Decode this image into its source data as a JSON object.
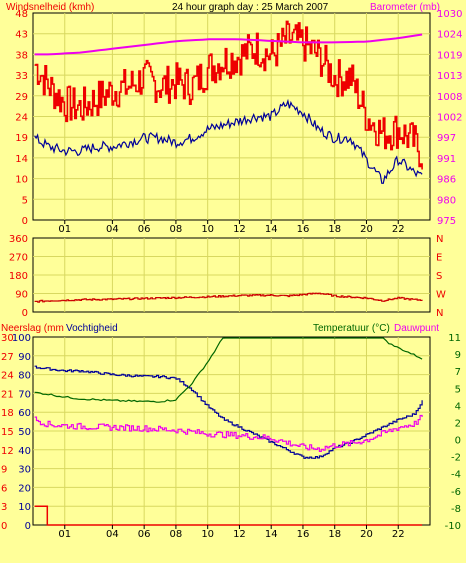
{
  "colors": {
    "background": "#ffff99",
    "wind": "#ee0000",
    "wind_gust": "#ee0000",
    "wind_avg": "#000099",
    "barometer": "#ee00ee",
    "wind_direction": "#cc0000",
    "rain": "#ee0000",
    "humidity": "#000099",
    "temperature": "#006600",
    "dewpoint": "#ee00ee",
    "title_text": "#000000",
    "grid": "#d8d860"
  },
  "chart_data": [
    {
      "type": "line",
      "title": "24 hour graph day : 25 March 2007",
      "ylabel_left": "Windsnelheid (kmh)",
      "ylabel_right": "Barometer (mb)",
      "x_ticks": [
        "01",
        "04",
        "06",
        "08",
        "10",
        "12",
        "14",
        "16",
        "18",
        "20",
        "22"
      ],
      "y_ticks_left": [
        "0",
        "5",
        "10",
        "14",
        "19",
        "24",
        "29",
        "33",
        "38",
        "43",
        "48"
      ],
      "y_ticks_right": [
        "975",
        "980",
        "986",
        "991",
        "997",
        "1002",
        "1008",
        "1013",
        "1019",
        "1024",
        "1030"
      ],
      "ylim_left": [
        0,
        48
      ],
      "ylim_right": [
        975,
        1030
      ],
      "xlim": [
        0,
        24
      ],
      "series": [
        {
          "name": "Windsnelheid (kmh)",
          "axis": "left",
          "x": [
            -0.9,
            0,
            1,
            2,
            3,
            4,
            5,
            6,
            7,
            8,
            9,
            10,
            11,
            12,
            13,
            14,
            15,
            16,
            17,
            18,
            19,
            20,
            21,
            22,
            23,
            23.5
          ],
          "values": [
            36,
            31,
            27,
            26,
            28,
            30,
            31,
            33,
            31,
            32,
            31,
            35,
            37,
            38,
            40,
            38,
            42,
            41,
            38,
            33,
            33,
            24,
            20,
            21,
            18,
            15
          ]
        },
        {
          "name": "Gemiddelde windsnelheid",
          "axis": "left",
          "x": [
            -0.9,
            0,
            1,
            2,
            3,
            4,
            5,
            6,
            7,
            8,
            9,
            10,
            11,
            12,
            13,
            14,
            15,
            16,
            17,
            18,
            19,
            20,
            21,
            22,
            23,
            23.5
          ],
          "values": [
            19,
            17,
            16,
            16,
            17,
            17,
            18,
            19,
            19,
            18,
            19,
            21,
            22,
            23,
            24,
            24,
            27,
            25,
            21,
            19,
            19,
            14,
            9,
            14,
            11,
            10
          ]
        },
        {
          "name": "Barometer (mb)",
          "axis": "right",
          "x": [
            -0.9,
            0,
            2,
            4,
            6,
            8,
            10,
            12,
            14,
            16,
            18,
            20,
            22,
            23.5
          ],
          "values": [
            1019.0,
            1019.0,
            1019.5,
            1020.5,
            1021.5,
            1022.5,
            1023.0,
            1023.0,
            1022.6,
            1022.2,
            1022.2,
            1022.4,
            1023.3,
            1024.3
          ]
        }
      ]
    },
    {
      "type": "line",
      "ylabel_right": "N W S E N",
      "x_ticks": [],
      "y_ticks_left": [
        "0",
        "90",
        "180",
        "270",
        "360"
      ],
      "y_ticks_right": [
        "N",
        "W",
        "S",
        "E",
        "N"
      ],
      "ylim": [
        0,
        360
      ],
      "xlim": [
        0,
        24
      ],
      "series": [
        {
          "name": "Windrichting",
          "x": [
            -0.9,
            0,
            2,
            4,
            6,
            8,
            10,
            12,
            14,
            15,
            16,
            17,
            18,
            20,
            21,
            22,
            23,
            23.5
          ],
          "values": [
            50,
            55,
            60,
            62,
            66,
            70,
            74,
            80,
            82,
            78,
            85,
            92,
            78,
            68,
            55,
            68,
            60,
            58
          ]
        }
      ]
    },
    {
      "type": "line",
      "ylabel_left": "Neerslag (mm",
      "ylabel_left_2": "Vochtigheid",
      "ylabel_right": "Temperatuur (°C)",
      "ylabel_right_2": "Dauwpunt",
      "x_ticks": [
        "01",
        "04",
        "06",
        "08",
        "10",
        "12",
        "14",
        "16",
        "18",
        "20",
        "22"
      ],
      "y_ticks_rain": [
        "0",
        "3",
        "6",
        "9",
        "12",
        "15",
        "18",
        "21",
        "24",
        "27",
        "30"
      ],
      "y_ticks_humidity": [
        "0",
        "10",
        "20",
        "30",
        "40",
        "50",
        "60",
        "70",
        "80",
        "90",
        "100"
      ],
      "y_ticks_right": [
        "-10",
        "-8",
        "-6",
        "-4",
        "-2",
        "0",
        "2",
        "4",
        "5",
        "7",
        "9",
        "11"
      ],
      "ylim_humidity": [
        0,
        100
      ],
      "ylim_temperature": [
        -10,
        11
      ],
      "xlim": [
        0,
        24
      ],
      "series": [
        {
          "name": "Neerslag (mm",
          "axis": "rain",
          "x": [
            -0.9,
            -0.1,
            -0.1,
            23.5
          ],
          "values": [
            3,
            3,
            0,
            0
          ]
        },
        {
          "name": "Vochtigheid",
          "axis": "humidity",
          "x": [
            -0.9,
            0,
            1,
            2,
            4,
            6,
            7,
            8,
            9,
            10,
            11,
            12,
            13,
            14,
            15,
            16,
            17,
            18,
            19,
            20,
            21,
            22,
            23,
            23.5
          ],
          "values": [
            84,
            83,
            82,
            82,
            80,
            79,
            79,
            78,
            72,
            63,
            56,
            52,
            48,
            44,
            40,
            36,
            36,
            41,
            44,
            48,
            52,
            56,
            59,
            66
          ]
        },
        {
          "name": "Temperatuur (°C)",
          "axis": "temperature",
          "x": [
            -0.9,
            0,
            1,
            2,
            4,
            6,
            7,
            8,
            9,
            10,
            11,
            21,
            21.5,
            22,
            23,
            23.5
          ],
          "values": [
            4.8,
            4.6,
            4.3,
            4.1,
            3.9,
            3.8,
            3.8,
            4.0,
            5.8,
            8.2,
            11.0,
            11.0,
            10.2,
            9.8,
            9.0,
            8.6
          ]
        },
        {
          "name": "Dauwpunt",
          "axis": "temperature",
          "x": [
            -0.9,
            0,
            2,
            4,
            6,
            8,
            10,
            11,
            12,
            14,
            15,
            16,
            17,
            18,
            19,
            20,
            21,
            22,
            23,
            23.5
          ],
          "values": [
            1.8,
            1.2,
            1.0,
            0.9,
            0.8,
            0.6,
            0.2,
            0.1,
            0.0,
            -0.3,
            -0.8,
            -1.3,
            -1.5,
            -1.1,
            -0.9,
            -0.5,
            0.2,
            0.9,
            1.3,
            2.1
          ]
        }
      ]
    }
  ]
}
